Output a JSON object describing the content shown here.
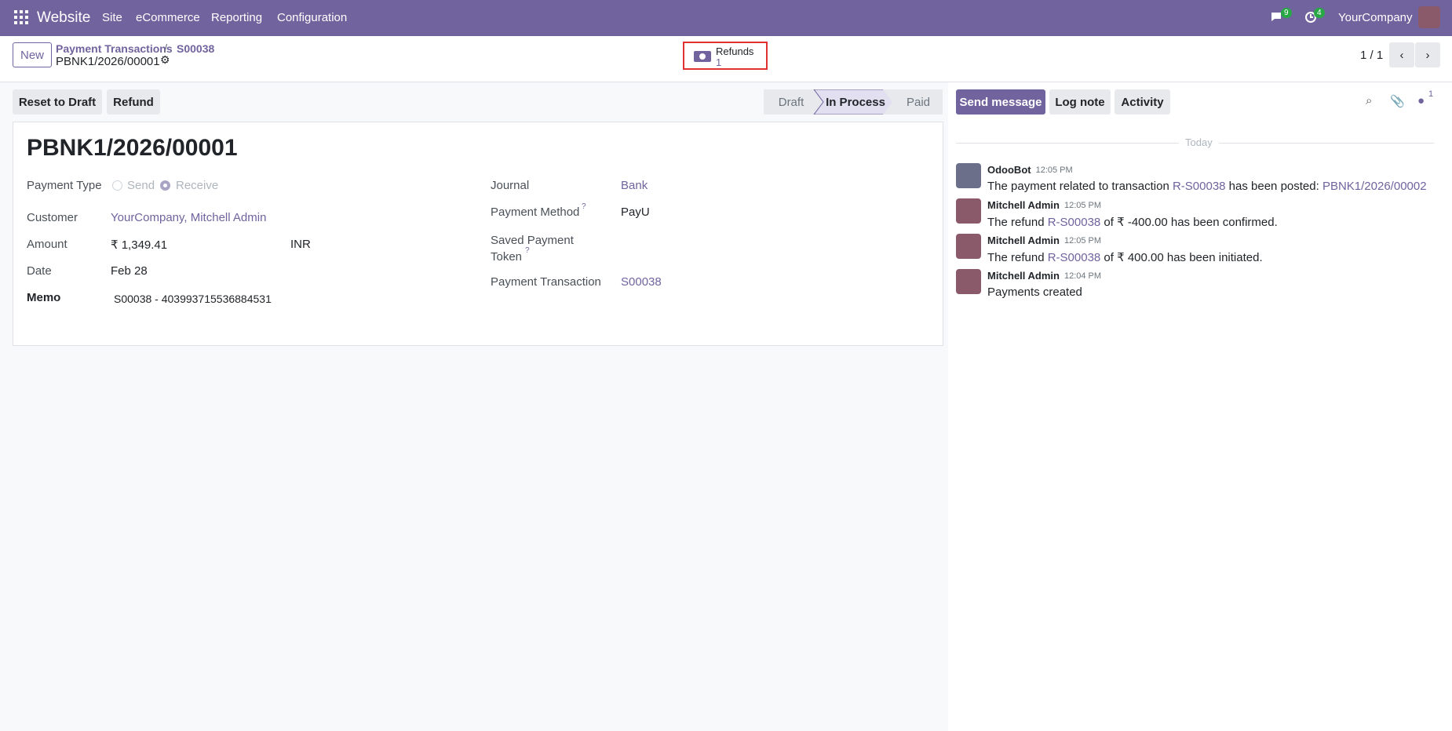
{
  "navbar": {
    "app": "Website",
    "menu": [
      "Site",
      "eCommerce",
      "Reporting",
      "Configuration"
    ],
    "messages_count": "9",
    "activities_count": "4",
    "company": "YourCompany"
  },
  "control_panel": {
    "new_button": "New",
    "breadcrumb": [
      "Payment Transactions",
      "S00038"
    ],
    "record": "PBNK1/2026/00001",
    "smart_button": {
      "label": "Refunds",
      "count": "1"
    },
    "pager": "1 / 1"
  },
  "actions": [
    "Reset to Draft",
    "Refund"
  ],
  "statusbar": [
    "Draft",
    "In Process",
    "Paid"
  ],
  "form": {
    "title": "PBNK1/2026/00001",
    "payment_type": {
      "label": "Payment Type",
      "options": [
        "Send",
        "Receive"
      ]
    },
    "customer": {
      "label": "Customer",
      "value": "YourCompany, Mitchell Admin"
    },
    "amount": {
      "label": "Amount",
      "value": "₹ 1,349.41",
      "currency": "INR"
    },
    "date": {
      "label": "Date",
      "value": "Feb 28"
    },
    "memo": {
      "label": "Memo",
      "value": "S00038 - 403993715536884531"
    },
    "journal": {
      "label": "Journal",
      "value": "Bank"
    },
    "payment_method": {
      "label": "Payment Method",
      "help": "?",
      "value": "PayU"
    },
    "saved_token": {
      "label": "Saved Payment Token",
      "help": "?"
    },
    "payment_transaction": {
      "label": "Payment Transaction",
      "value": "S00038"
    }
  },
  "chatter": {
    "buttons": [
      "Send message",
      "Log note",
      "Activity"
    ],
    "followers_count": "1",
    "date_separator": "Today",
    "messages": [
      {
        "author": "OdooBot",
        "time": "12:05 PM",
        "parts": [
          {
            "text": "The payment related to transaction "
          },
          {
            "link": "R-S00038"
          },
          {
            "text": " has been posted: "
          },
          {
            "link": "PBNK1/2026/00002"
          }
        ]
      },
      {
        "author": "Mitchell Admin",
        "time": "12:05 PM",
        "parts": [
          {
            "text": "The refund "
          },
          {
            "link": "R-S00038"
          },
          {
            "text": " of ₹ -400.00 has been confirmed."
          }
        ]
      },
      {
        "author": "Mitchell Admin",
        "time": "12:05 PM",
        "parts": [
          {
            "text": "The refund "
          },
          {
            "link": "R-S00038"
          },
          {
            "text": " of ₹ 400.00 has been initiated."
          }
        ]
      },
      {
        "author": "Mitchell Admin",
        "time": "12:04 PM",
        "parts": [
          {
            "text": "Payments created"
          }
        ]
      }
    ]
  }
}
